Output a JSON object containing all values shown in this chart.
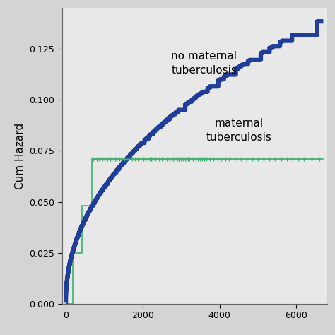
{
  "fig_background_color": "#d4d4d4",
  "plot_bg_color": "#e8e8e8",
  "ylabel": "Cum Hazard",
  "ylim": [
    0,
    0.145
  ],
  "xlim": [
    -100,
    6800
  ],
  "yticks": [
    0.0,
    0.025,
    0.05,
    0.075,
    0.1,
    0.125
  ],
  "xticks": [
    0,
    2000,
    4000,
    6000
  ],
  "blue_line_color": "#1f3d99",
  "green_line_color": "#3cb371",
  "label_no_maternal": "no maternal\ntuberculosis",
  "label_maternal": "maternal\ntuberculosis",
  "label_fontsize": 11,
  "ylabel_fontsize": 11,
  "tick_fontsize": 9,
  "blue_linewidth": 4.5,
  "green_linewidth": 1.2,
  "censoring_marker": "+",
  "censoring_markersize": 5,
  "figsize": [
    4.74,
    4.74
  ],
  "dpi": 100
}
